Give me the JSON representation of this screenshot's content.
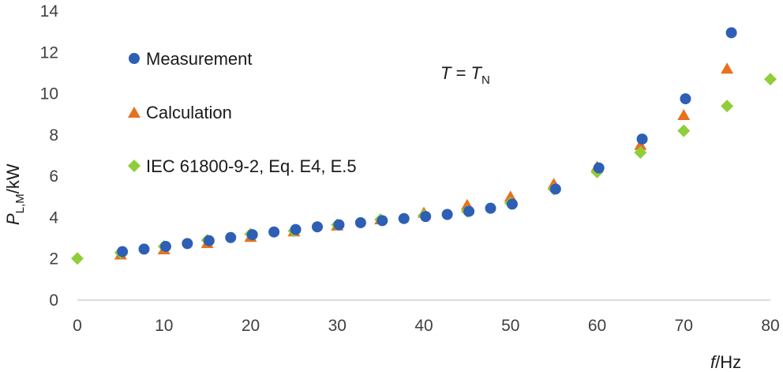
{
  "chart_data": {
    "type": "scatter",
    "title": "",
    "xlabel": {
      "symbol": "f",
      "unit": "/Hz"
    },
    "ylabel": {
      "symbol": "P",
      "subscript": "L,M",
      "unit": "/kW"
    },
    "xlim": [
      0,
      80
    ],
    "ylim": [
      0,
      14
    ],
    "xticks": [
      0,
      10,
      20,
      30,
      40,
      50,
      60,
      70,
      80
    ],
    "yticks": [
      0,
      2,
      4,
      6,
      8,
      10,
      12,
      14
    ],
    "grid": false,
    "legend_position": "left",
    "annotation": {
      "lhs": "T",
      "eq": " = ",
      "rhs": "T",
      "rhs_subscript": "N"
    },
    "series": [
      {
        "name": "Measurement",
        "marker": "circle",
        "color": "#2e5fb5",
        "points": [
          [
            5.2,
            2.35
          ],
          [
            7.7,
            2.47
          ],
          [
            10.2,
            2.6
          ],
          [
            12.7,
            2.74
          ],
          [
            15.2,
            2.88
          ],
          [
            17.7,
            3.03
          ],
          [
            20.2,
            3.17
          ],
          [
            22.7,
            3.3
          ],
          [
            25.2,
            3.42
          ],
          [
            27.7,
            3.55
          ],
          [
            30.2,
            3.65
          ],
          [
            32.7,
            3.75
          ],
          [
            35.2,
            3.85
          ],
          [
            37.7,
            3.95
          ],
          [
            40.2,
            4.05
          ],
          [
            42.7,
            4.15
          ],
          [
            45.2,
            4.3
          ],
          [
            47.7,
            4.45
          ],
          [
            50.2,
            4.65
          ],
          [
            55.2,
            5.38
          ],
          [
            60.2,
            6.4
          ],
          [
            65.2,
            7.8
          ],
          [
            70.2,
            9.75
          ],
          [
            75.5,
            12.95
          ]
        ]
      },
      {
        "name": "Calculation",
        "marker": "triangle",
        "color": "#e8711c",
        "points": [
          [
            5,
            2.2
          ],
          [
            10,
            2.45
          ],
          [
            15,
            2.75
          ],
          [
            20,
            3.05
          ],
          [
            25,
            3.32
          ],
          [
            30,
            3.6
          ],
          [
            35,
            3.9
          ],
          [
            40,
            4.22
          ],
          [
            45,
            4.6
          ],
          [
            50,
            5.0
          ],
          [
            55,
            5.62
          ],
          [
            60,
            6.45
          ],
          [
            65,
            7.5
          ],
          [
            70,
            8.95
          ],
          [
            75,
            11.2
          ]
        ]
      },
      {
        "name": "IEC 61800-9-2, Eq. E4, E.5",
        "marker": "diamond",
        "color": "#8fce3a",
        "points": [
          [
            0,
            2.02
          ],
          [
            5,
            2.3
          ],
          [
            10,
            2.6
          ],
          [
            15,
            2.9
          ],
          [
            20,
            3.2
          ],
          [
            25,
            3.35
          ],
          [
            30,
            3.65
          ],
          [
            35,
            3.9
          ],
          [
            40,
            4.1
          ],
          [
            45,
            4.3
          ],
          [
            50,
            4.7
          ],
          [
            55,
            5.38
          ],
          [
            60,
            6.2
          ],
          [
            65,
            7.15
          ],
          [
            70,
            8.2
          ],
          [
            75,
            9.4
          ],
          [
            80,
            10.7
          ]
        ]
      }
    ]
  }
}
